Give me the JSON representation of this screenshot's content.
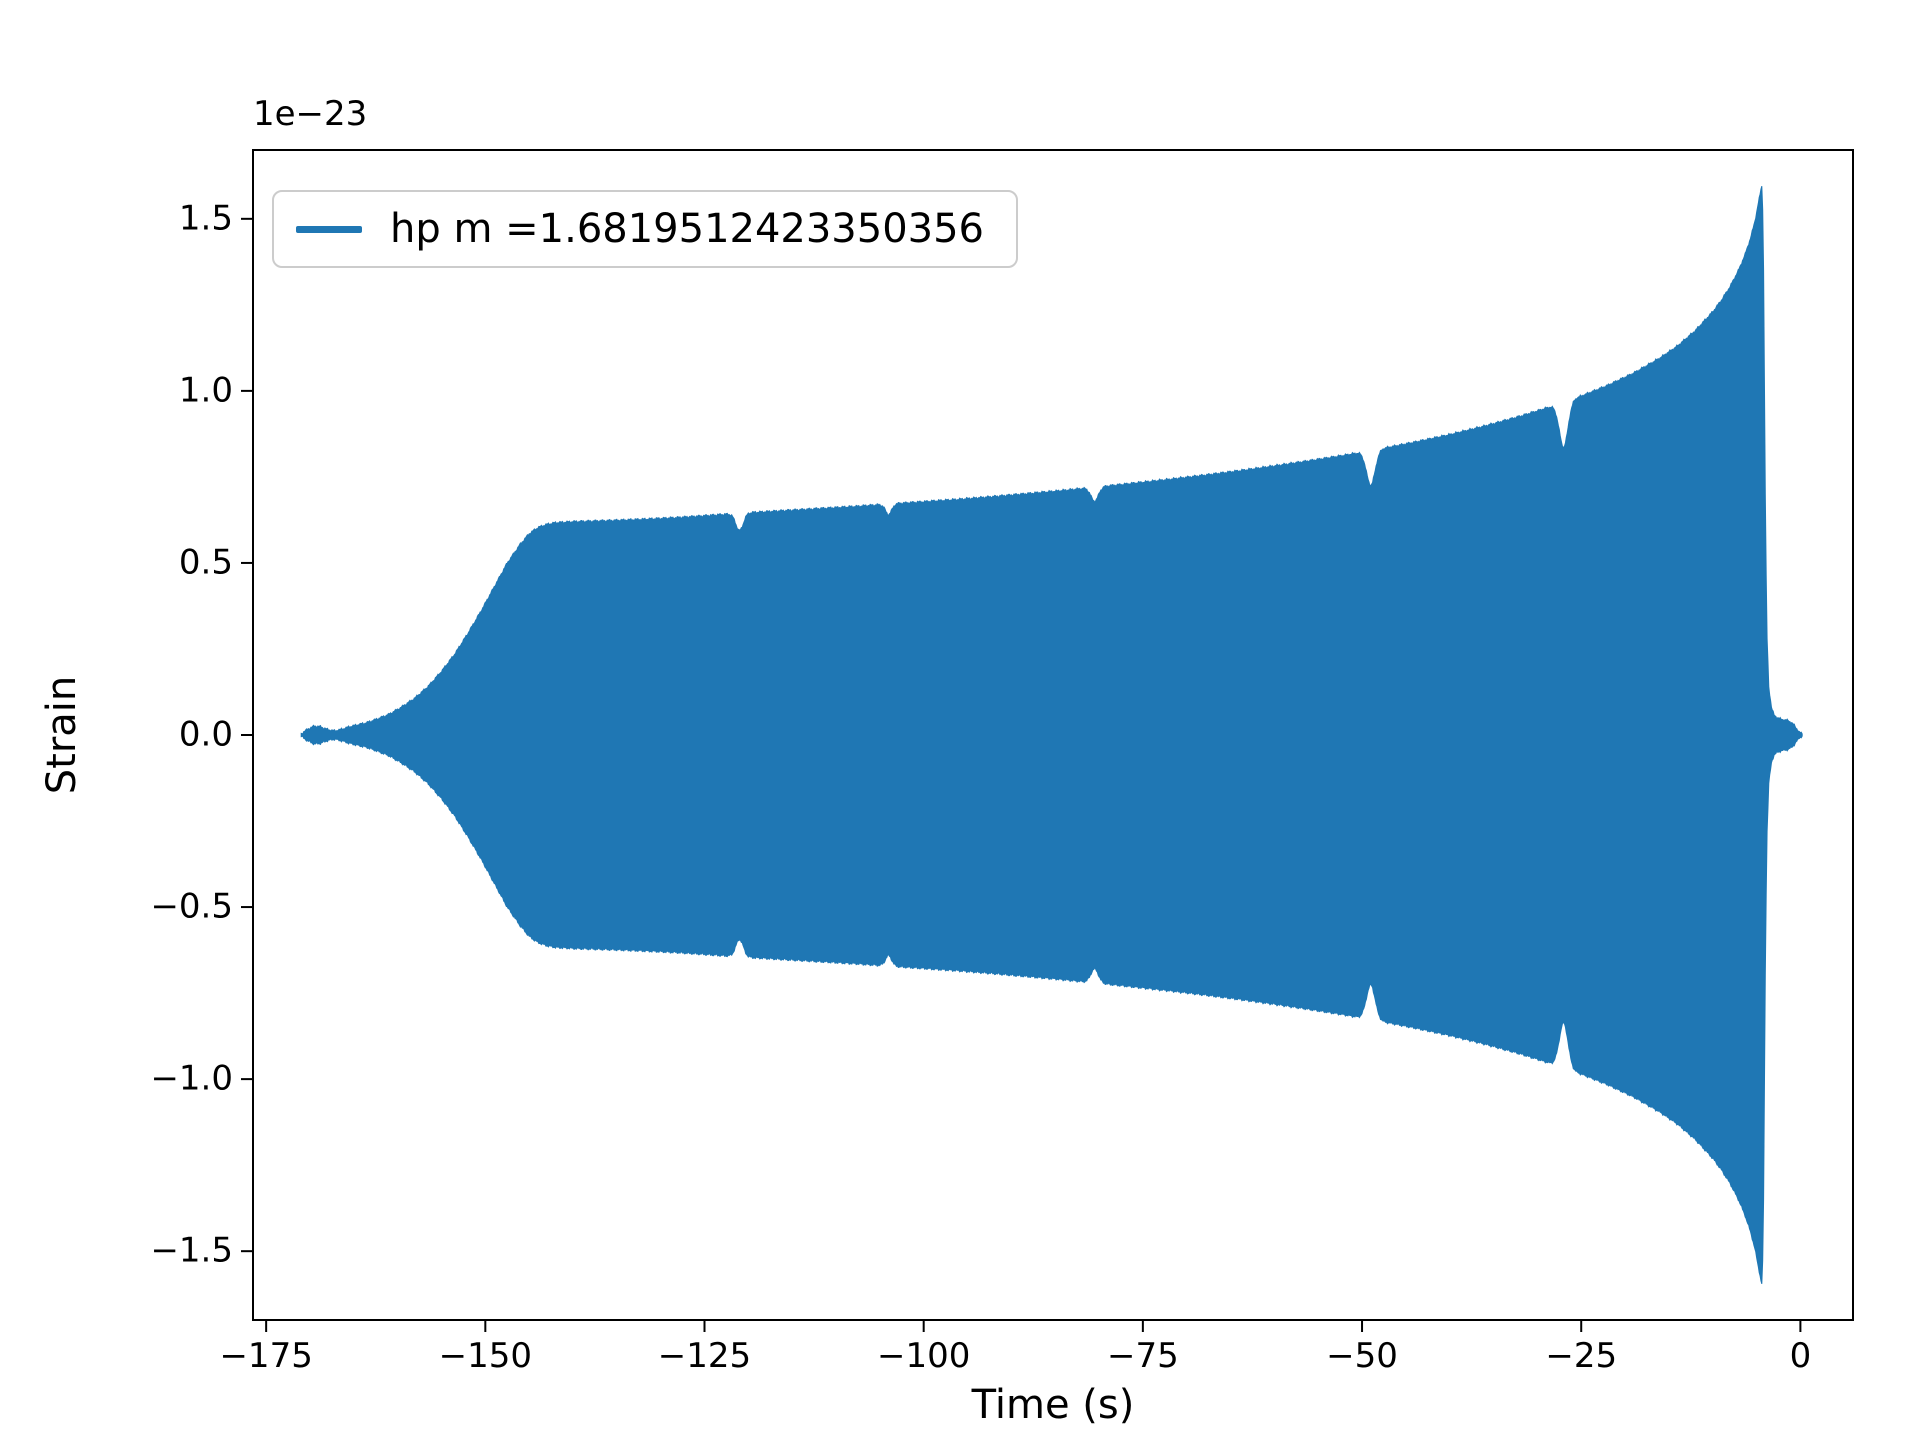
{
  "figure": {
    "background": "#ffffff"
  },
  "chart_data": {
    "type": "line",
    "title": "",
    "xlabel": "Time (s)",
    "ylabel": "Strain",
    "offset_text": "1e−23",
    "line_color": "#1f77b4",
    "legend_position": "upper left",
    "legend": [
      {
        "label": "hp m =1.6819512423350356",
        "color": "#1f77b4"
      }
    ],
    "xlim": [
      -176.5,
      6
    ],
    "ylim": [
      -1.7,
      1.7
    ],
    "grid": false,
    "y_scale_factor": "1e-23",
    "xticks": [
      {
        "value": -175,
        "label": "−175"
      },
      {
        "value": -150,
        "label": "−150"
      },
      {
        "value": -125,
        "label": "−125"
      },
      {
        "value": -100,
        "label": "−100"
      },
      {
        "value": -75,
        "label": "−75"
      },
      {
        "value": -50,
        "label": "−50"
      },
      {
        "value": -25,
        "label": "−25"
      },
      {
        "value": 0,
        "label": "0"
      }
    ],
    "yticks": [
      {
        "value": -1.5,
        "label": "−1.5"
      },
      {
        "value": -1.0,
        "label": "−1.0"
      },
      {
        "value": -0.5,
        "label": "−0.5"
      },
      {
        "value": 0.0,
        "label": "0.0"
      },
      {
        "value": 0.5,
        "label": "0.5"
      },
      {
        "value": 1.0,
        "label": "1.0"
      },
      {
        "value": 1.5,
        "label": "1.5"
      }
    ],
    "envelope": [
      [
        -171,
        0.004
      ],
      [
        -170.2,
        0.018
      ],
      [
        -169.5,
        0.026
      ],
      [
        -168.8,
        0.024
      ],
      [
        -168,
        0.016
      ],
      [
        -167.2,
        0.012
      ],
      [
        -166.5,
        0.016
      ],
      [
        -165.5,
        0.024
      ],
      [
        -164.5,
        0.03
      ],
      [
        -163.5,
        0.036
      ],
      [
        -162.5,
        0.045
      ],
      [
        -161,
        0.06
      ],
      [
        -159.5,
        0.082
      ],
      [
        -158,
        0.108
      ],
      [
        -156.5,
        0.142
      ],
      [
        -155,
        0.185
      ],
      [
        -153.5,
        0.235
      ],
      [
        -152,
        0.295
      ],
      [
        -150.5,
        0.36
      ],
      [
        -149,
        0.43
      ],
      [
        -147.5,
        0.5
      ],
      [
        -146,
        0.555
      ],
      [
        -145,
        0.585
      ],
      [
        -144,
        0.603
      ],
      [
        -143,
        0.612
      ],
      [
        -142,
        0.617
      ],
      [
        -140,
        0.62
      ],
      [
        -136,
        0.623
      ],
      [
        -132,
        0.627
      ],
      [
        -128,
        0.632
      ],
      [
        -124,
        0.639
      ],
      [
        -120,
        0.646
      ],
      [
        -116,
        0.652
      ],
      [
        -112,
        0.658
      ],
      [
        -108,
        0.664
      ],
      [
        -104,
        0.671
      ],
      [
        -100,
        0.678
      ],
      [
        -96,
        0.685
      ],
      [
        -92,
        0.693
      ],
      [
        -88,
        0.702
      ],
      [
        -84,
        0.711
      ],
      [
        -80,
        0.721
      ],
      [
        -76,
        0.732
      ],
      [
        -72,
        0.743
      ],
      [
        -68,
        0.755
      ],
      [
        -64,
        0.768
      ],
      [
        -60,
        0.782
      ],
      [
        -56,
        0.797
      ],
      [
        -52,
        0.813
      ],
      [
        -48,
        0.831
      ],
      [
        -44,
        0.851
      ],
      [
        -40,
        0.873
      ],
      [
        -36,
        0.898
      ],
      [
        -32,
        0.926
      ],
      [
        -28,
        0.958
      ],
      [
        -25,
        0.985
      ],
      [
        -22,
        1.016
      ],
      [
        -19,
        1.052
      ],
      [
        -16,
        1.096
      ],
      [
        -14,
        1.131
      ],
      [
        -12,
        1.175
      ],
      [
        -10,
        1.23
      ],
      [
        -9,
        1.264
      ],
      [
        -8,
        1.304
      ],
      [
        -7,
        1.354
      ],
      [
        -6.3,
        1.397
      ],
      [
        -5.7,
        1.443
      ],
      [
        -5.2,
        1.492
      ],
      [
        -4.8,
        1.545
      ],
      [
        -4.5,
        1.585
      ],
      [
        -4.35,
        1.6
      ],
      [
        -4.22,
        1.42
      ],
      [
        -4.1,
        1.0
      ],
      [
        -3.95,
        0.55
      ],
      [
        -3.8,
        0.28
      ],
      [
        -3.6,
        0.14
      ],
      [
        -3.3,
        0.08
      ],
      [
        -3.0,
        0.058
      ],
      [
        -2.6,
        0.05
      ],
      [
        -2.2,
        0.046
      ],
      [
        -1.8,
        0.044
      ],
      [
        -1.4,
        0.042
      ],
      [
        -1.0,
        0.036
      ],
      [
        -0.7,
        0.028
      ],
      [
        -0.4,
        0.018
      ],
      [
        -0.1,
        0.008
      ],
      [
        0.2,
        0.003
      ]
    ],
    "glitches": [
      {
        "t": -121,
        "depth": 0.05,
        "width": 0.6
      },
      {
        "t": -104,
        "depth": 0.03,
        "width": 0.5
      },
      {
        "t": -80.5,
        "depth": 0.04,
        "width": 0.6
      },
      {
        "t": -49,
        "depth": 0.1,
        "width": 0.7
      },
      {
        "t": -27,
        "depth": 0.13,
        "width": 0.7
      }
    ]
  }
}
